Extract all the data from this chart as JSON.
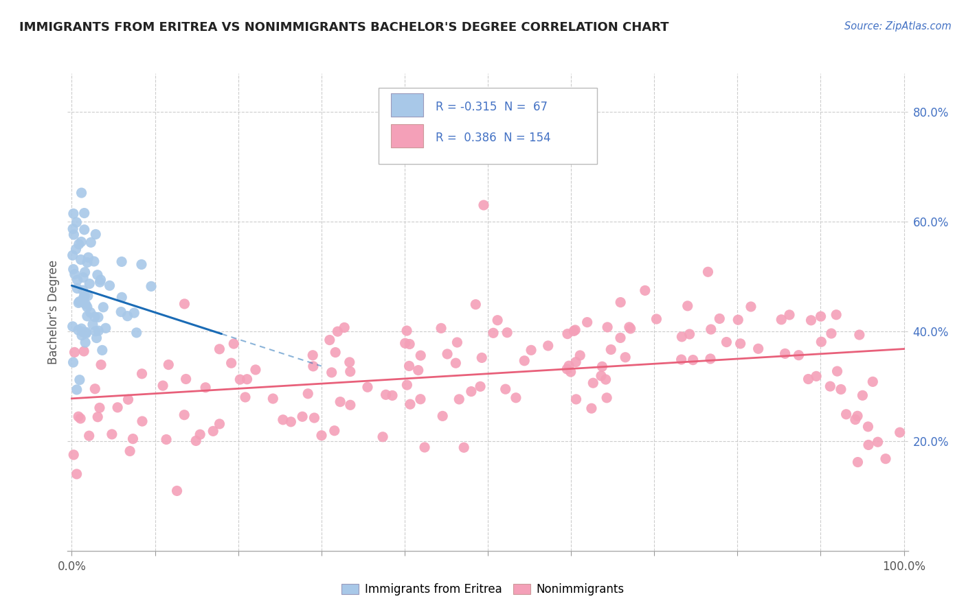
{
  "title": "IMMIGRANTS FROM ERITREA VS NONIMMIGRANTS BACHELOR'S DEGREE CORRELATION CHART",
  "source_text": "Source: ZipAtlas.com",
  "ylabel": "Bachelor's Degree",
  "R_blue": -0.315,
  "N_blue": 67,
  "R_pink": 0.386,
  "N_pink": 154,
  "legend_label_blue": "Immigrants from Eritrea",
  "legend_label_pink": "Nonimmigrants",
  "blue_color": "#a8c8e8",
  "pink_color": "#f4a0b8",
  "blue_line_color": "#1a6bb5",
  "pink_line_color": "#e8607a",
  "background_color": "#ffffff",
  "grid_color": "#cccccc",
  "title_color": "#222222",
  "source_color": "#4472c4",
  "tick_color": "#4472c4",
  "ylabel_color": "#555555",
  "x_tick_labels": [
    "0.0%",
    "",
    "",
    "",
    "",
    "",
    "",
    "",
    "",
    "",
    "100.0%"
  ],
  "x_ticks": [
    0.0,
    0.1,
    0.2,
    0.3,
    0.4,
    0.5,
    0.6,
    0.7,
    0.8,
    0.9,
    1.0
  ],
  "y_ticks": [
    0.2,
    0.4,
    0.6,
    0.8
  ],
  "y_tick_labels": [
    "20.0%",
    "40.0%",
    "60.0%",
    "80.0%"
  ]
}
